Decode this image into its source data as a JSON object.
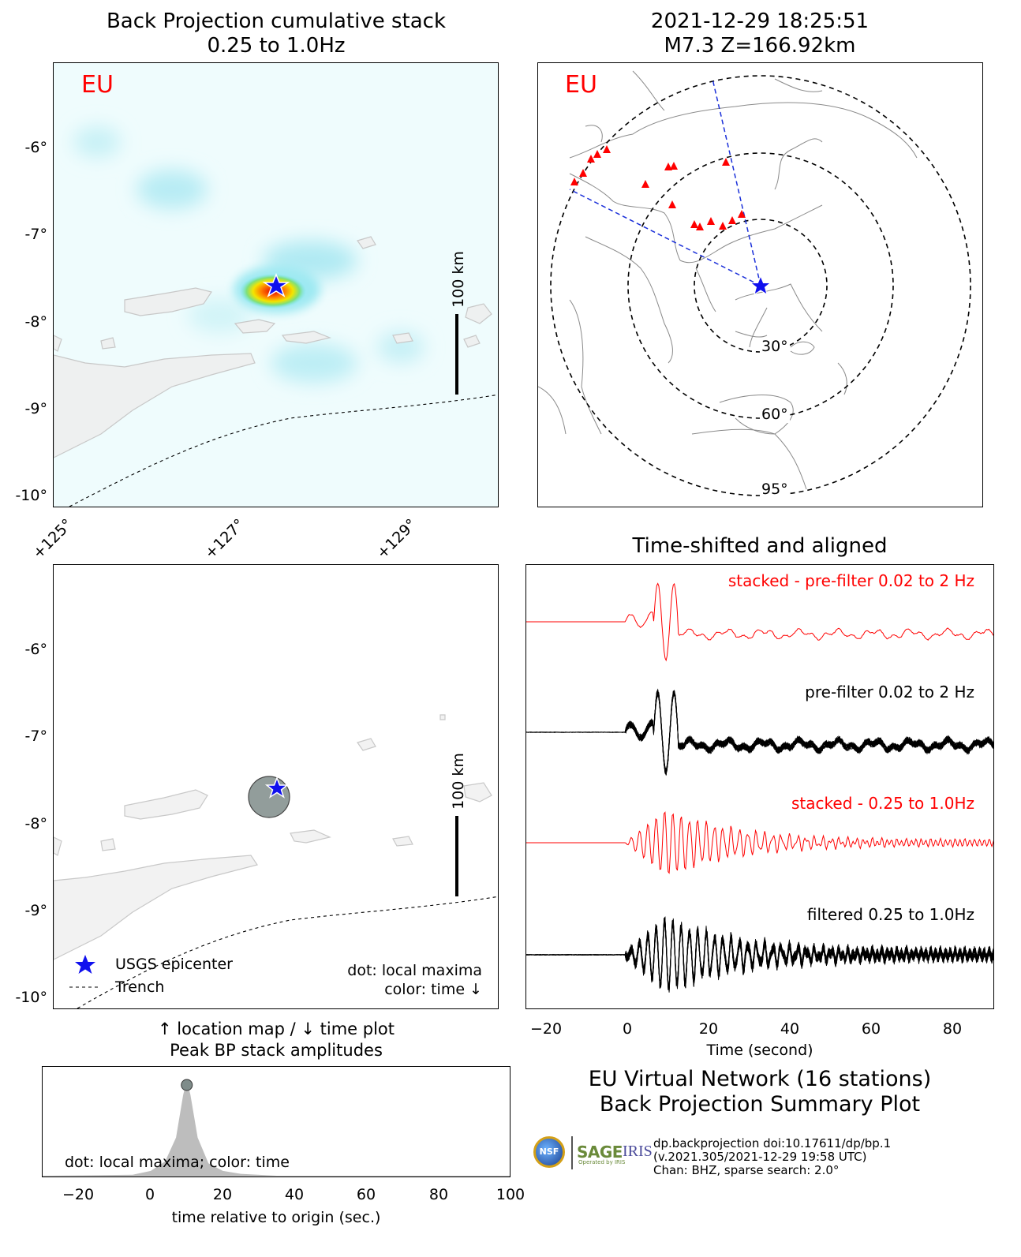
{
  "top_left": {
    "title_line1": "Back Projection cumulative stack",
    "title_line2": "0.25 to 1.0Hz",
    "network_label": "EU",
    "scale_label": "100 km"
  },
  "top_right": {
    "title_line1": "2021-12-29 18:25:51",
    "title_line2": "M7.3 Z=166.92km",
    "network_label": "EU",
    "ring_labels": [
      "30°",
      "60°",
      "95°"
    ]
  },
  "lat_ticks": [
    "-6°",
    "-7°",
    "-8°",
    "-9°",
    "-10°"
  ],
  "lon_ticks": [
    "+125°",
    "+127°",
    "+129°"
  ],
  "mid_left": {
    "scale_label": "100 km",
    "legend": {
      "epicenter": "USGS epicenter",
      "trench": "Trench"
    },
    "note_line1": "dot: local maxima",
    "note_line2": "color: time ↓",
    "caption_line1": "↑ location map / ↓ time plot",
    "caption_line2": "Peak BP stack amplitudes"
  },
  "traces": {
    "title": "Time-shifted and aligned",
    "labels": [
      "stacked - pre-filter 0.02 to 2 Hz",
      "pre-filter 0.02 to 2 Hz",
      "stacked - 0.25 to 1.0Hz",
      "filtered 0.25 to 1.0Hz"
    ],
    "xlabel": "Time (second)",
    "xticks": [
      "−20",
      "0",
      "20",
      "40",
      "60",
      "80"
    ]
  },
  "peak_plot": {
    "note": "dot: local maxima; color: time",
    "xlabel": "time relative to origin (sec.)",
    "xticks": [
      "−20",
      "0",
      "20",
      "40",
      "60",
      "80",
      "100"
    ]
  },
  "summary": {
    "line1": "EU Virtual Network (16 stations)",
    "line2": "Back Projection Summary Plot"
  },
  "footer": {
    "nsf_logo": "NSF",
    "sage_logo": "SAGE",
    "sage_sub": "Operated by IRIS",
    "iris_logo": "IRIS",
    "line1": "dp.backprojection doi:10.17611/dp/bp.1",
    "line2": "(v.2021.305/2021-12-29 19:58 UTC)",
    "line3": "Chan: BHZ, sparse search: 2.0°"
  },
  "colors": {
    "accent_red": "#ff0000",
    "star_blue": "#1010ee",
    "land": "#f2f2f2",
    "coast": "#bbbbbb"
  },
  "chart_data": [
    {
      "type": "heatmap",
      "title": "Back Projection cumulative stack 0.25 to 1.0Hz",
      "xlim": [
        124.9,
        130.0
      ],
      "ylim": [
        -10.15,
        -5.1
      ],
      "epicenter": {
        "lon": 127.6,
        "lat": -7.6
      },
      "peak_energy": {
        "lon": 127.5,
        "lat": -7.65
      }
    },
    {
      "type": "scatter",
      "title": "location map",
      "local_maxima": [
        {
          "lon": 127.55,
          "lat": -7.7
        }
      ],
      "epicenter": {
        "lon": 127.6,
        "lat": -7.6
      }
    },
    {
      "type": "line",
      "title": "Time-shifted and aligned",
      "xlim": [
        -24,
        90
      ],
      "series": [
        {
          "name": "stacked - pre-filter 0.02 to 2 Hz"
        },
        {
          "name": "pre-filter 0.02 to 2 Hz"
        },
        {
          "name": "stacked - 0.25 to 1.0Hz"
        },
        {
          "name": "filtered 0.25 to 1.0Hz"
        }
      ],
      "xlabel": "Time (second)"
    },
    {
      "type": "area",
      "title": "Peak BP stack amplitudes",
      "xlim": [
        -30,
        100
      ],
      "x": [
        -30,
        -5,
        0,
        4,
        7,
        9,
        10,
        11,
        13,
        16,
        20,
        25,
        35,
        100
      ],
      "values": [
        0.0,
        0.01,
        0.05,
        0.15,
        0.4,
        0.85,
        1.0,
        0.85,
        0.4,
        0.13,
        0.05,
        0.02,
        0.0,
        0.0
      ],
      "local_maxima": [
        {
          "x": 10,
          "y": 1.0
        }
      ],
      "xlabel": "time relative to origin (sec.)"
    }
  ]
}
